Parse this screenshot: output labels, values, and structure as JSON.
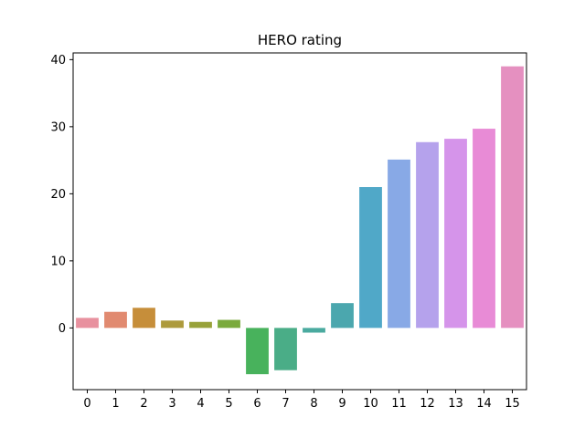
{
  "chart_data": {
    "type": "bar",
    "title": "HERO rating",
    "xlabel": "",
    "ylabel": "",
    "categories": [
      "0",
      "1",
      "2",
      "3",
      "4",
      "5",
      "6",
      "7",
      "8",
      "9",
      "10",
      "11",
      "12",
      "13",
      "14",
      "15"
    ],
    "values": [
      1.5,
      2.4,
      3.0,
      1.1,
      0.9,
      1.2,
      -6.9,
      -6.3,
      -0.7,
      3.7,
      21.0,
      25.1,
      27.7,
      28.2,
      29.7,
      39.0
    ],
    "ylim": [
      -9.2,
      41.0
    ],
    "yticks": [
      0,
      10,
      20,
      30,
      40
    ],
    "ytick_labels": [
      "0",
      "10",
      "20",
      "30",
      "40"
    ],
    "grid": false,
    "colors": [
      "#e8919f",
      "#e18a70",
      "#c68e3a",
      "#ad9a3c",
      "#98a23a",
      "#7aaa3c",
      "#48b25c",
      "#4aad87",
      "#4aaa9f",
      "#4ba7ae",
      "#50a8c8",
      "#88a9e6",
      "#b5a2ec",
      "#d594ea",
      "#e88bd6",
      "#e590c0"
    ]
  }
}
